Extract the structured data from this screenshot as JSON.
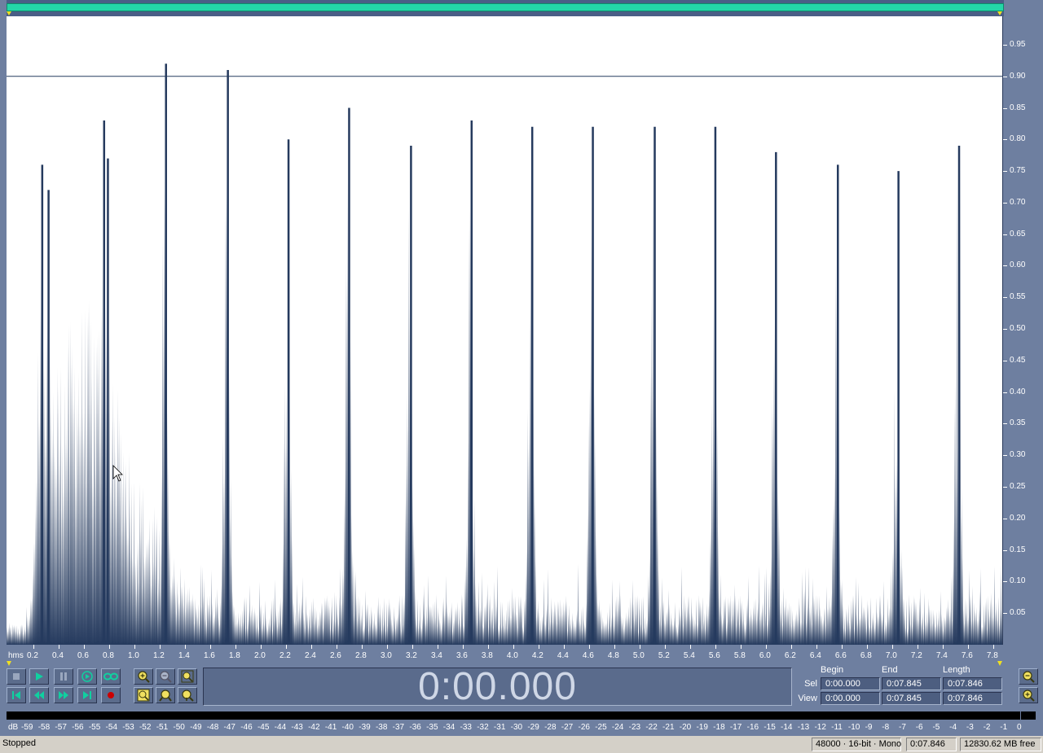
{
  "colors": {
    "window_bg": "#6e7fa0",
    "wave_fill": "#253a5e",
    "wave_bg": "#ffffff",
    "overview_range": "#24d6a8",
    "cue_line": "#253a5e",
    "record_red": "#cc0000",
    "status_bg": "#d4d0c8"
  },
  "amplitude_scale": {
    "labels": [
      "0.95",
      "0.90",
      "0.85",
      "0.80",
      "0.75",
      "0.70",
      "0.65",
      "0.60",
      "0.55",
      "0.50",
      "0.45",
      "0.40",
      "0.35",
      "0.30",
      "0.25",
      "0.20",
      "0.15",
      "0.10",
      "0.05"
    ],
    "values": [
      0.95,
      0.9,
      0.85,
      0.8,
      0.75,
      0.7,
      0.65,
      0.6,
      0.55,
      0.5,
      0.45,
      0.4,
      0.35,
      0.3,
      0.25,
      0.2,
      0.15,
      0.1,
      0.05
    ],
    "threshold_line": 0.9
  },
  "time_ruler": {
    "unit_label": "hms",
    "labels": [
      "0.2",
      "0.4",
      "0.6",
      "0.8",
      "1.0",
      "1.2",
      "1.4",
      "1.6",
      "1.8",
      "2.0",
      "2.2",
      "2.4",
      "2.6",
      "2.8",
      "3.0",
      "3.2",
      "3.4",
      "3.6",
      "3.8",
      "4.0",
      "4.2",
      "4.4",
      "4.6",
      "4.8",
      "5.0",
      "5.2",
      "5.4",
      "5.6",
      "5.8",
      "6.0",
      "6.2",
      "6.4",
      "6.6",
      "6.8",
      "7.0",
      "7.2",
      "7.4",
      "7.6",
      "7.8"
    ],
    "values": [
      0.2,
      0.4,
      0.6,
      0.8,
      1.0,
      1.2,
      1.4,
      1.6,
      1.8,
      2.0,
      2.2,
      2.4,
      2.6,
      2.8,
      3.0,
      3.2,
      3.4,
      3.6,
      3.8,
      4.0,
      4.2,
      4.4,
      4.6,
      4.8,
      5.0,
      5.2,
      5.4,
      5.6,
      5.8,
      6.0,
      6.2,
      6.4,
      6.6,
      6.8,
      7.0,
      7.2,
      7.4,
      7.6,
      7.8
    ],
    "range": [
      0.0,
      7.846
    ]
  },
  "waveform": {
    "peaks": [
      {
        "t": 0.27,
        "amp": 0.76
      },
      {
        "t": 0.32,
        "amp": 0.72
      },
      {
        "t": 0.76,
        "amp": 0.83
      },
      {
        "t": 0.79,
        "amp": 0.77
      },
      {
        "t": 1.25,
        "amp": 0.92
      },
      {
        "t": 1.74,
        "amp": 0.91
      },
      {
        "t": 2.22,
        "amp": 0.8
      },
      {
        "t": 2.7,
        "amp": 0.85
      },
      {
        "t": 3.19,
        "amp": 0.79
      },
      {
        "t": 3.67,
        "amp": 0.83
      },
      {
        "t": 4.15,
        "amp": 0.82
      },
      {
        "t": 4.63,
        "amp": 0.82
      },
      {
        "t": 5.12,
        "amp": 0.82
      },
      {
        "t": 5.6,
        "amp": 0.82
      },
      {
        "t": 6.08,
        "amp": 0.78
      },
      {
        "t": 6.57,
        "amp": 0.76
      },
      {
        "t": 7.05,
        "amp": 0.75
      },
      {
        "t": 7.53,
        "amp": 0.79
      }
    ]
  },
  "transport": {
    "buttons": [
      "stop-icon",
      "play-icon",
      "pause-icon",
      "play-to-end-icon",
      "loop-icon",
      "go-to-start-icon",
      "rewind-icon",
      "fast-forward-icon",
      "go-to-end-icon",
      "record-icon"
    ]
  },
  "zoom": {
    "buttons": [
      "zoom-in-icon",
      "zoom-out-icon",
      "zoom-full-icon",
      "zoom-selection-icon",
      "zoom-left-icon",
      "zoom-right-icon",
      "zoom-in-vertical-icon",
      "zoom-out-vertical-icon"
    ]
  },
  "time_display": "0:00.000",
  "selection_panel": {
    "headers": {
      "begin": "Begin",
      "end": "End",
      "length": "Length"
    },
    "sel": {
      "label": "Sel",
      "begin": "0:00.000",
      "end": "0:07.845",
      "length": "0:07.846"
    },
    "view": {
      "label": "View",
      "begin": "0:00.000",
      "end": "0:07.845",
      "length": "0:07.846"
    }
  },
  "level_meter": {
    "labels": [
      "dB",
      "-59",
      "-58",
      "-57",
      "-56",
      "-55",
      "-54",
      "-53",
      "-52",
      "-51",
      "-50",
      "-49",
      "-48",
      "-47",
      "-46",
      "-45",
      "-44",
      "-43",
      "-42",
      "-41",
      "-40",
      "-39",
      "-38",
      "-37",
      "-36",
      "-35",
      "-34",
      "-33",
      "-32",
      "-31",
      "-30",
      "-29",
      "-28",
      "-27",
      "-26",
      "-25",
      "-24",
      "-23",
      "-22",
      "-21",
      "-20",
      "-19",
      "-18",
      "-17",
      "-16",
      "-15",
      "-14",
      "-13",
      "-12",
      "-11",
      "-10",
      "-9",
      "-8",
      "-7",
      "-6",
      "-5",
      "-4",
      "-3",
      "-2",
      "-1",
      "0"
    ]
  },
  "status_bar": {
    "state": "Stopped",
    "format": "48000 · 16-bit · Mono",
    "duration": "0:07.846",
    "free_space": "12830.62 MB free"
  }
}
